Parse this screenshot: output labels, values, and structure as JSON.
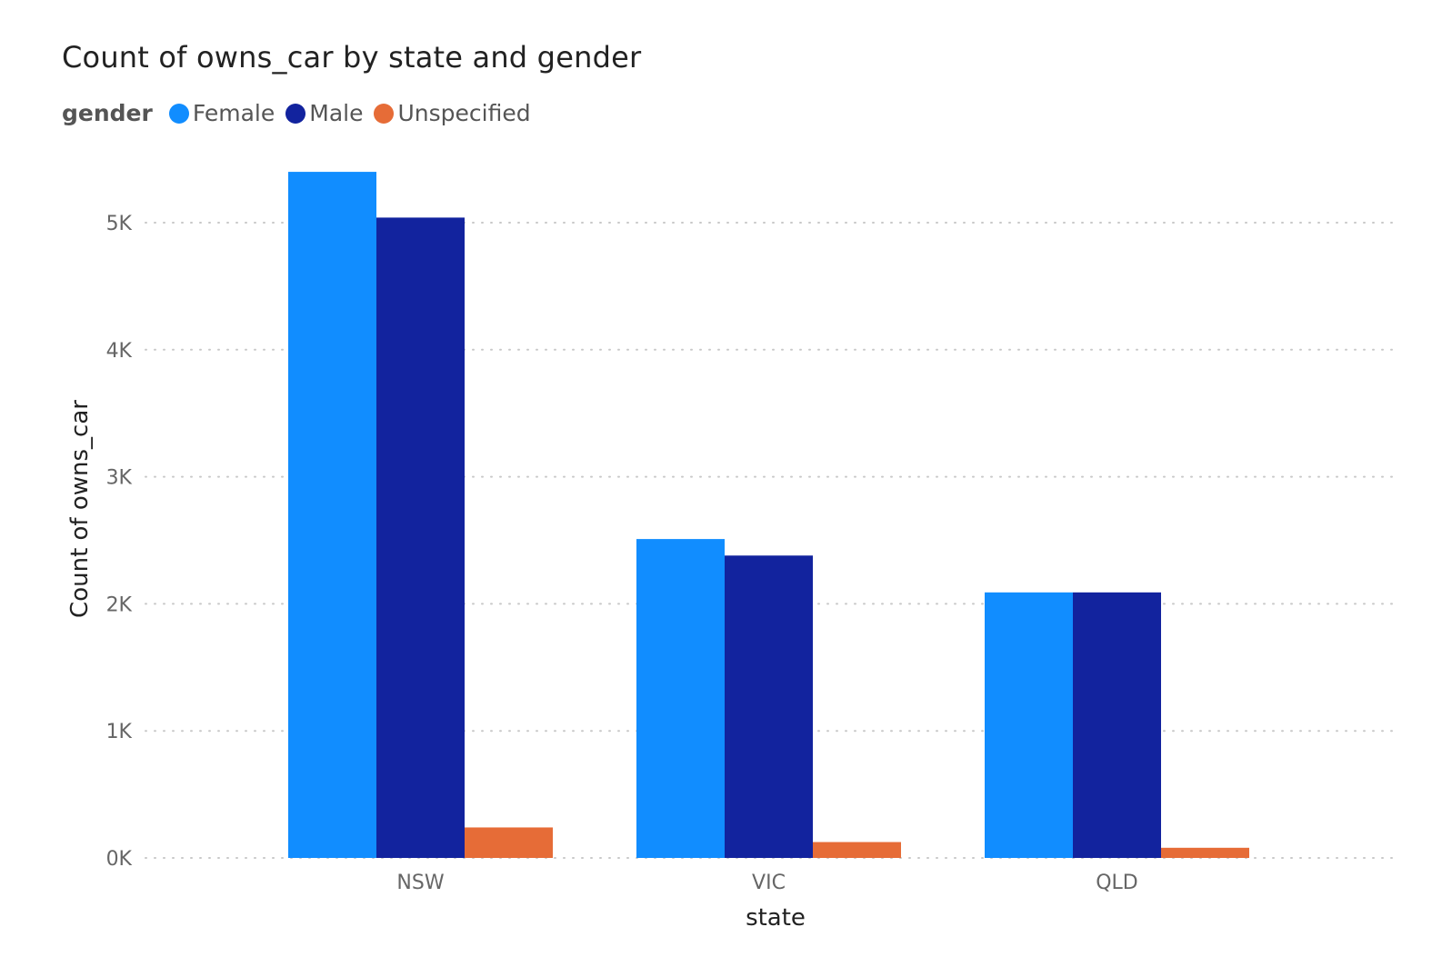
{
  "chart_data": {
    "type": "bar",
    "title": "Count of owns_car by state and gender",
    "legend_title": "gender",
    "legend_position": "top-left",
    "xlabel": "state",
    "ylabel": "Count of owns_car",
    "categories": [
      "NSW",
      "VIC",
      "QLD"
    ],
    "series": [
      {
        "name": "Female",
        "color": "#118DFF",
        "values": [
          5400,
          2510,
          2090
        ]
      },
      {
        "name": "Male",
        "color": "#12239E",
        "values": [
          5040,
          2380,
          2090
        ]
      },
      {
        "name": "Unspecified",
        "color": "#E66C37",
        "values": [
          240,
          125,
          80
        ]
      }
    ],
    "ylim": [
      0,
      5400
    ],
    "yticks": [
      {
        "value": 0,
        "label": "0K"
      },
      {
        "value": 1000,
        "label": "1K"
      },
      {
        "value": 2000,
        "label": "2K"
      },
      {
        "value": 3000,
        "label": "3K"
      },
      {
        "value": 4000,
        "label": "4K"
      },
      {
        "value": 5000,
        "label": "5K"
      }
    ],
    "grid": true
  }
}
